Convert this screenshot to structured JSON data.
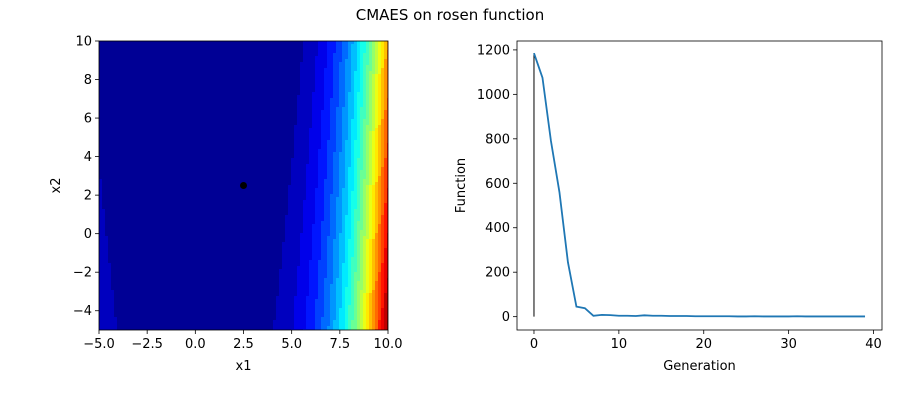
{
  "title": "CMAES on rosen function",
  "chart_data": [
    {
      "type": "heatmap",
      "function": "rosen",
      "colormap": "jet",
      "xlabel": "x1",
      "ylabel": "x2",
      "xlim": [
        -5,
        10
      ],
      "ylim": [
        -5,
        10
      ],
      "xticks": [
        -5.0,
        -2.5,
        0.0,
        2.5,
        5.0,
        7.5,
        10.0
      ],
      "xtick_labels": [
        "−5.0",
        "−2.5",
        "0.0",
        "2.5",
        "5.0",
        "7.5",
        "10.0"
      ],
      "yticks": [
        -4,
        -2,
        0,
        2,
        4,
        6,
        8,
        10
      ],
      "ytick_labels": [
        "−4",
        "−2",
        "0",
        "2",
        "4",
        "6",
        "8",
        "10"
      ],
      "marker": {
        "x": 2.5,
        "y": 2.5,
        "color": "#000000"
      }
    },
    {
      "type": "line",
      "xlabel": "Generation",
      "ylabel": "Function",
      "xlim": [
        -2,
        41
      ],
      "ylim": [
        -60,
        1240
      ],
      "xticks": [
        0,
        10,
        20,
        30,
        40
      ],
      "xtick_labels": [
        "0",
        "10",
        "20",
        "30",
        "40"
      ],
      "yticks": [
        0,
        200,
        400,
        600,
        800,
        1000,
        1200
      ],
      "ytick_labels": [
        "0",
        "200",
        "400",
        "600",
        "800",
        "1000",
        "1200"
      ],
      "series": [
        {
          "color": "#1f77b4",
          "x": [
            0,
            1,
            2,
            3,
            4,
            5,
            6,
            7,
            8,
            9,
            10,
            11,
            12,
            13,
            14,
            15,
            16,
            17,
            18,
            19,
            20,
            21,
            22,
            23,
            24,
            25,
            26,
            27,
            28,
            29,
            30,
            31,
            32,
            33,
            34,
            35,
            36,
            37,
            38,
            39
          ],
          "values": [
            1185,
            1075,
            790,
            560,
            245,
            45,
            38,
            4,
            8,
            7,
            4,
            4,
            3,
            6,
            4,
            4,
            3,
            3,
            3,
            2,
            2,
            2,
            2,
            2,
            1,
            1,
            2,
            1,
            1,
            1,
            1,
            2,
            1,
            1,
            1,
            1,
            1,
            1,
            1,
            1
          ]
        }
      ],
      "vline": {
        "x": 0,
        "ymin": 0,
        "ymax": 1185,
        "color": "#000000"
      }
    }
  ]
}
